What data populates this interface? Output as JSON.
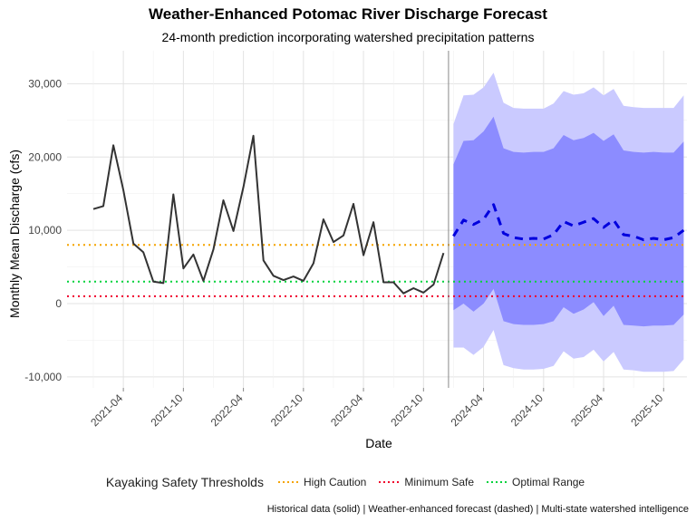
{
  "chart_data": {
    "type": "line",
    "title": "Weather-Enhanced Potomac River Discharge Forecast",
    "subtitle": "24-month prediction incorporating watershed precipitation patterns",
    "xlabel": "Date",
    "ylabel": "Monthly Mean Discharge (cfs)",
    "ylim": [
      -11500,
      34500
    ],
    "yticks": [
      -10000,
      0,
      10000,
      20000,
      30000
    ],
    "ytick_labels": [
      "-10,000",
      "0",
      "10,000",
      "20,000",
      "30,000"
    ],
    "xticks": [
      "2021-04",
      "2021-10",
      "2022-04",
      "2022-10",
      "2023-04",
      "2023-10",
      "2024-04",
      "2024-10",
      "2025-04",
      "2025-10"
    ],
    "forecast_start": "2024-01",
    "historical": {
      "x": [
        "2021-01",
        "2021-02",
        "2021-03",
        "2021-04",
        "2021-05",
        "2021-06",
        "2021-07",
        "2021-08",
        "2021-09",
        "2021-10",
        "2021-11",
        "2021-12",
        "2022-01",
        "2022-02",
        "2022-03",
        "2022-04",
        "2022-05",
        "2022-06",
        "2022-07",
        "2022-08",
        "2022-09",
        "2022-10",
        "2022-11",
        "2022-12",
        "2023-01",
        "2023-02",
        "2023-03",
        "2023-04",
        "2023-05",
        "2023-06",
        "2023-07",
        "2023-08",
        "2023-09",
        "2023-10",
        "2023-11",
        "2023-12"
      ],
      "y": [
        12900,
        13300,
        21600,
        15500,
        8200,
        7000,
        3000,
        2800,
        14900,
        4800,
        6700,
        3100,
        7400,
        14100,
        9900,
        15900,
        22900,
        5900,
        3800,
        3200,
        3700,
        3100,
        5500,
        11500,
        8400,
        9300,
        13600,
        6600,
        11100,
        2900,
        2900,
        1400,
        2100,
        1500,
        2600,
        6900
      ]
    },
    "forecast": {
      "x": [
        "2024-01",
        "2024-02",
        "2024-03",
        "2024-04",
        "2024-05",
        "2024-06",
        "2024-07",
        "2024-08",
        "2024-09",
        "2024-10",
        "2024-11",
        "2024-12",
        "2025-01",
        "2025-02",
        "2025-03",
        "2025-04",
        "2025-05",
        "2025-06",
        "2025-07",
        "2025-08",
        "2025-09",
        "2025-10",
        "2025-11",
        "2025-12"
      ],
      "mean": [
        9200,
        11400,
        10800,
        11500,
        13500,
        9600,
        9000,
        8800,
        8900,
        8800,
        9400,
        11200,
        10600,
        11100,
        11600,
        10400,
        11400,
        9400,
        9200,
        8700,
        8900,
        8700,
        9000,
        10000
      ],
      "lower80": [
        -900,
        0,
        -1100,
        0,
        2000,
        -2400,
        -2800,
        -2900,
        -2900,
        -2800,
        -2400,
        -500,
        -1400,
        -800,
        200,
        -1700,
        -300,
        -2900,
        -3000,
        -3100,
        -3000,
        -3000,
        -2900,
        -1500
      ],
      "upper80": [
        19000,
        22200,
        22300,
        23500,
        25500,
        21200,
        20700,
        20600,
        20700,
        20700,
        21200,
        23000,
        22300,
        22600,
        23300,
        22200,
        23100,
        20900,
        20700,
        20600,
        20700,
        20600,
        20600,
        22100
      ],
      "lower95": [
        -6000,
        -6000,
        -7000,
        -5900,
        -3600,
        -8400,
        -8800,
        -9000,
        -9000,
        -8900,
        -8500,
        -6500,
        -7500,
        -7300,
        -6300,
        -7900,
        -6600,
        -9000,
        -9100,
        -9300,
        -9300,
        -9300,
        -9200,
        -7600
      ],
      "upper95": [
        24500,
        28400,
        28500,
        29500,
        31500,
        27400,
        26700,
        26600,
        26600,
        26600,
        27300,
        29000,
        28500,
        28700,
        29500,
        28400,
        29300,
        27000,
        26800,
        26700,
        26700,
        26700,
        26700,
        28400
      ]
    },
    "thresholds": [
      {
        "name": "High Caution",
        "value": 8000,
        "color": "#f5a400"
      },
      {
        "name": "Minimum Safe",
        "value": 1000,
        "color": "#f0002a"
      },
      {
        "name": "Optimal Range",
        "value": 3000,
        "color": "#00d23c"
      }
    ],
    "legend_title": "Kayaking Safety Thresholds",
    "legend_position": "bottom",
    "grid": true,
    "colors": {
      "historical": "#333333",
      "forecast": "#0000dd",
      "band80": "#8c8cff",
      "band95": "#cacaff",
      "divider": "#888888"
    }
  },
  "caption": "Historical data (solid) | Weather-enhanced forecast (dashed) | Multi-state watershed intelligence"
}
